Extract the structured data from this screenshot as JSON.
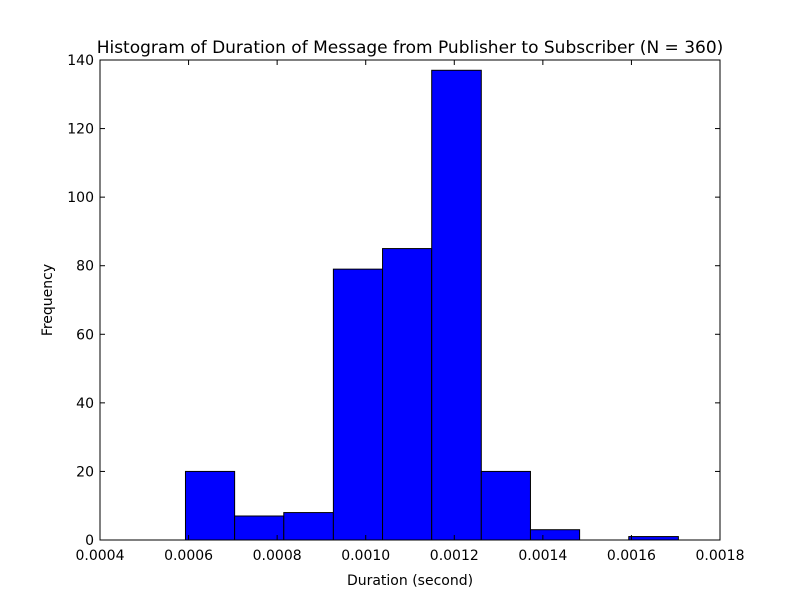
{
  "chart_data": {
    "type": "bar",
    "title": "Histogram of Duration of Message from Publisher to Subscriber (N = 360)",
    "xlabel": "Duration (second)",
    "ylabel": "Frequency",
    "xlim": [
      0.0004,
      0.0018
    ],
    "ylim": [
      0,
      140
    ],
    "xticks": [
      0.0004,
      0.0006,
      0.0008,
      0.001,
      0.0012,
      0.0014,
      0.0016,
      0.0018
    ],
    "xtick_labels": [
      "0.0004",
      "0.0006",
      "0.0008",
      "0.0010",
      "0.0012",
      "0.0014",
      "0.0016",
      "0.0018"
    ],
    "yticks": [
      0,
      20,
      40,
      60,
      80,
      100,
      120,
      140
    ],
    "ytick_labels": [
      "0",
      "20",
      "40",
      "60",
      "80",
      "100",
      "120",
      "140"
    ],
    "bin_edges": [
      0.000593,
      0.000704,
      0.000815,
      0.000927,
      0.001038,
      0.001149,
      0.001261,
      0.001372,
      0.001483,
      0.001594,
      0.001706
    ],
    "values": [
      20,
      7,
      8,
      79,
      85,
      137,
      20,
      3,
      0,
      1
    ],
    "bar_color": "#0000ff",
    "edge_color": "#000000",
    "grid": false
  }
}
